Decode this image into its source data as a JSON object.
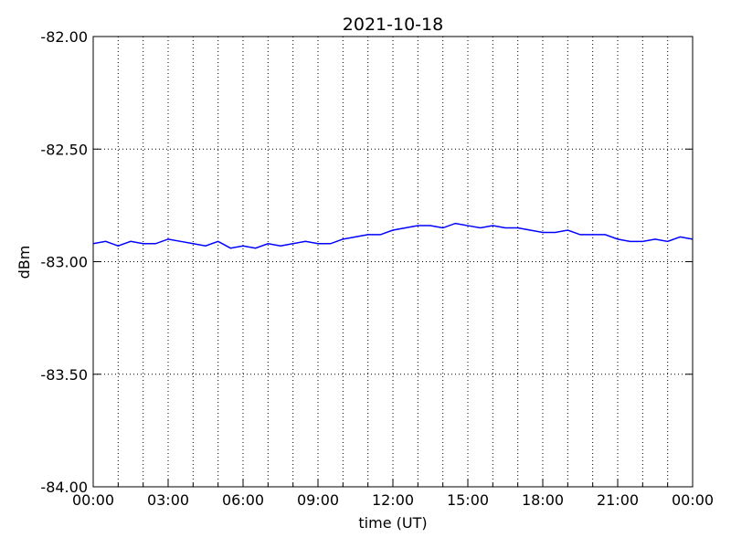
{
  "chart_data": {
    "type": "line",
    "title": "2021-10-18",
    "xlabel": "time (UT)",
    "ylabel": "dBm",
    "x": [
      0,
      0.5,
      1,
      1.5,
      2,
      2.5,
      3,
      3.5,
      4,
      4.5,
      5,
      5.5,
      6,
      6.5,
      7,
      7.5,
      8,
      8.5,
      9,
      9.5,
      10,
      10.5,
      11,
      11.5,
      12,
      12.5,
      13,
      13.5,
      14,
      14.5,
      15,
      15.5,
      16,
      16.5,
      17,
      17.5,
      18,
      18.5,
      19,
      19.5,
      20,
      20.5,
      21,
      21.5,
      22,
      22.5,
      23,
      23.5,
      24
    ],
    "series": [
      {
        "color": "#0000ff",
        "values": [
          -82.92,
          -82.91,
          -82.93,
          -82.91,
          -82.92,
          -82.92,
          -82.9,
          -82.91,
          -82.92,
          -82.93,
          -82.91,
          -82.94,
          -82.93,
          -82.94,
          -82.92,
          -82.93,
          -82.92,
          -82.91,
          -82.92,
          -82.92,
          -82.9,
          -82.89,
          -82.88,
          -82.88,
          -82.86,
          -82.85,
          -82.84,
          -82.84,
          -82.85,
          -82.83,
          -82.84,
          -82.85,
          -82.84,
          -82.85,
          -82.85,
          -82.86,
          -82.87,
          -82.87,
          -82.86,
          -82.88,
          -82.88,
          -82.88,
          -82.9,
          -82.91,
          -82.91,
          -82.9,
          -82.91,
          -82.89,
          -82.9
        ]
      }
    ],
    "xlim": [
      0,
      24
    ],
    "xticks": [
      {
        "value": 0,
        "label": "00:00"
      },
      {
        "value": 3,
        "label": "03:00"
      },
      {
        "value": 6,
        "label": "06:00"
      },
      {
        "value": 9,
        "label": "09:00"
      },
      {
        "value": 12,
        "label": "12:00"
      },
      {
        "value": 15,
        "label": "15:00"
      },
      {
        "value": 18,
        "label": "18:00"
      },
      {
        "value": 21,
        "label": "21:00"
      },
      {
        "value": 24,
        "label": "00:00"
      }
    ],
    "xminorticks": [
      0,
      1,
      2,
      3,
      4,
      5,
      6,
      7,
      8,
      9,
      10,
      11,
      12,
      13,
      14,
      15,
      16,
      17,
      18,
      19,
      20,
      21,
      22,
      23,
      24
    ],
    "ylim": [
      -84,
      -82
    ],
    "yticks": [
      {
        "value": -84,
        "label": "-84.00"
      },
      {
        "value": -83.5,
        "label": "-83.50"
      },
      {
        "value": -83,
        "label": "-83.00"
      },
      {
        "value": -82.5,
        "label": "-82.50"
      },
      {
        "value": -82,
        "label": "-82.00"
      }
    ],
    "grid": true
  }
}
